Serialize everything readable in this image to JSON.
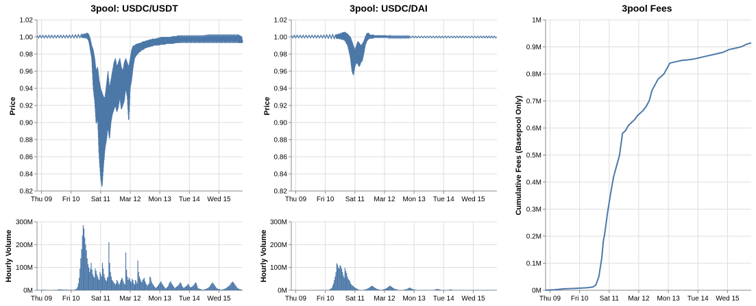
{
  "theme": {
    "series_color": "#4c78a8",
    "grid_color": "#dddddd",
    "axis_color": "#888888"
  },
  "chart_data": [
    {
      "id": "usdt_price",
      "type": "line",
      "title": "3pool: USDC/USDT",
      "xlabel": "",
      "ylabel": "Price",
      "x_ticks": [
        "Thu 09",
        "Fri 10",
        "Sat 11",
        "Mar 12",
        "Mon 13",
        "Tue 14",
        "Wed 15"
      ],
      "y_ticks": [
        "1.02",
        "1.00",
        "0.98",
        "0.96",
        "0.94",
        "0.92",
        "0.90",
        "0.88",
        "0.86",
        "0.84",
        "0.82"
      ],
      "ylim": [
        0.82,
        1.02
      ],
      "x_unit": "days since Thu 09 00:00",
      "xlim": [
        0,
        6.95
      ],
      "x": [
        0,
        0.5,
        1.0,
        1.5,
        1.7,
        1.75,
        1.8,
        1.85,
        1.9,
        1.95,
        2.0,
        2.05,
        2.1,
        2.15,
        2.2,
        2.25,
        2.3,
        2.35,
        2.4,
        2.45,
        2.5,
        2.55,
        2.6,
        2.65,
        2.7,
        2.75,
        2.8,
        2.85,
        2.9,
        2.95,
        3.0,
        3.05,
        3.1,
        3.15,
        3.2,
        3.25,
        3.3,
        3.35,
        3.4,
        3.45,
        3.5,
        3.55,
        3.6,
        3.65,
        3.7,
        3.75,
        3.8,
        3.85,
        3.9,
        3.95,
        4.0,
        4.1,
        4.2,
        4.3,
        4.4,
        4.5,
        4.6,
        4.7,
        4.8,
        5.0,
        5.2,
        5.4,
        5.6,
        5.8,
        6.0,
        6.2,
        6.4,
        6.6,
        6.8,
        6.95
      ],
      "high": [
        1.002,
        1.002,
        1.002,
        1.003,
        1.005,
        1.003,
        0.998,
        0.99,
        0.985,
        0.975,
        0.96,
        0.965,
        0.95,
        0.94,
        0.935,
        0.93,
        0.93,
        0.945,
        0.96,
        0.94,
        0.95,
        0.96,
        0.97,
        0.975,
        0.965,
        0.97,
        0.975,
        0.965,
        0.96,
        0.97,
        0.975,
        0.97,
        0.965,
        0.975,
        0.985,
        0.99,
        0.99,
        0.992,
        0.992,
        0.993,
        0.993,
        0.994,
        0.995,
        0.995,
        0.996,
        0.996,
        0.997,
        0.997,
        0.998,
        0.998,
        0.998,
        0.999,
        1.0,
        1.0,
        1.0,
        1.0,
        1.001,
        1.001,
        1.002,
        1.002,
        1.002,
        1.002,
        1.002,
        1.003,
        1.003,
        1.003,
        1.003,
        1.003,
        1.003,
        1.0
      ],
      "low": [
        0.999,
        0.999,
        0.999,
        0.999,
        0.998,
        0.995,
        0.985,
        0.975,
        0.94,
        0.925,
        0.898,
        0.905,
        0.86,
        0.835,
        0.824,
        0.85,
        0.87,
        0.88,
        0.895,
        0.88,
        0.9,
        0.91,
        0.915,
        0.92,
        0.912,
        0.918,
        0.93,
        0.915,
        0.92,
        0.925,
        0.94,
        0.93,
        0.9,
        0.94,
        0.95,
        0.965,
        0.975,
        0.978,
        0.98,
        0.982,
        0.983,
        0.985,
        0.985,
        0.987,
        0.987,
        0.988,
        0.988,
        0.989,
        0.989,
        0.99,
        0.99,
        0.99,
        0.991,
        0.991,
        0.992,
        0.992,
        0.992,
        0.993,
        0.993,
        0.993,
        0.993,
        0.993,
        0.993,
        0.993,
        0.993,
        0.993,
        0.993,
        0.993,
        0.993,
        0.993
      ]
    },
    {
      "id": "usdt_volume",
      "type": "bar",
      "title": "",
      "xlabel": "",
      "ylabel": "Hourly Volume",
      "x_ticks": [
        "Thu 09",
        "Fri 10",
        "Sat 11",
        "Mar 12",
        "Mon 13",
        "Tue 14",
        "Wed 15"
      ],
      "y_ticks": [
        "300M",
        "200M",
        "100M",
        "0M"
      ],
      "ylim": [
        0,
        300
      ],
      "x_unit": "hours since Thu 09 00:00",
      "values": [
        2,
        1,
        1,
        2,
        1,
        1,
        2,
        3,
        1,
        2,
        1,
        2,
        1,
        1,
        1,
        0,
        1,
        1,
        1,
        1,
        1,
        2,
        1,
        1,
        2,
        2,
        3,
        5,
        4,
        3,
        4,
        3,
        2,
        3,
        2,
        2,
        3,
        2,
        2,
        2,
        1,
        2,
        3,
        2,
        2,
        2,
        3,
        3,
        5,
        8,
        15,
        30,
        55,
        95,
        140,
        180,
        240,
        285,
        270,
        230,
        200,
        175,
        140,
        115,
        100,
        80,
        95,
        120,
        90,
        70,
        60,
        55,
        95,
        85,
        70,
        60,
        50,
        45,
        80,
        70,
        60,
        120,
        95,
        70,
        55,
        45,
        40,
        55,
        60,
        210,
        120,
        80,
        60,
        45,
        40,
        35,
        30,
        25,
        30,
        45,
        40,
        30,
        25,
        35,
        45,
        55,
        50,
        40,
        30,
        25,
        165,
        90,
        60,
        45,
        55,
        50,
        40,
        35,
        50,
        45,
        30,
        25,
        45,
        40,
        30,
        130,
        80,
        60,
        50,
        40,
        35,
        45,
        50,
        55,
        40,
        30,
        25,
        20,
        25,
        30,
        60,
        55,
        40,
        30,
        25,
        20,
        15,
        10,
        12,
        15,
        20,
        25,
        30,
        35,
        40,
        30,
        25,
        20,
        15,
        10,
        8,
        12,
        15,
        20,
        30,
        35,
        40,
        30,
        25,
        20,
        15,
        10,
        12,
        15,
        18,
        20,
        25,
        30,
        35,
        30,
        20,
        15,
        10,
        12,
        15,
        18,
        20,
        25,
        28,
        20,
        15,
        12,
        15,
        18,
        20,
        25,
        30,
        35,
        30,
        20,
        10,
        8,
        6,
        5,
        4,
        3,
        2,
        3,
        4,
        5,
        6,
        8,
        10,
        12,
        15,
        20,
        25,
        30,
        35,
        30,
        25,
        20,
        15,
        10,
        8,
        6,
        5,
        4,
        3,
        2,
        3,
        4,
        5,
        6,
        8,
        10,
        12,
        15,
        18,
        20,
        25,
        30,
        35,
        38,
        35,
        30,
        25,
        20,
        15,
        10,
        8,
        6,
        5,
        4,
        3,
        2
      ]
    },
    {
      "id": "dai_price",
      "type": "line",
      "title": "3pool: USDC/DAI",
      "xlabel": "",
      "ylabel": "Price",
      "x_ticks": [
        "Thu 09",
        "Fri 10",
        "Sat 11",
        "Mar 12",
        "Mon 13",
        "Tue 14",
        "Wed 15"
      ],
      "y_ticks": [
        "1.02",
        "1.00",
        "0.98",
        "0.96",
        "0.94",
        "0.92",
        "0.90",
        "0.88",
        "0.86",
        "0.84",
        "0.82"
      ],
      "ylim": [
        0.82,
        1.02
      ],
      "x_unit": "days since Thu 09 00:00",
      "xlim": [
        0,
        6.95
      ],
      "x": [
        0,
        0.5,
        1.0,
        1.5,
        1.7,
        1.8,
        1.9,
        2.0,
        2.05,
        2.1,
        2.15,
        2.2,
        2.25,
        2.3,
        2.35,
        2.4,
        2.45,
        2.5,
        2.55,
        2.6,
        2.65,
        2.7,
        2.75,
        2.8,
        2.85,
        2.9,
        3.0,
        3.2,
        3.4,
        3.6,
        3.8,
        4.0,
        4.5,
        5.0,
        5.5,
        6.0,
        6.5,
        6.95
      ],
      "high": [
        1.002,
        1.002,
        1.002,
        1.003,
        1.005,
        1.006,
        1.004,
        1.0,
        0.995,
        0.99,
        0.985,
        0.99,
        0.995,
        0.993,
        0.99,
        0.992,
        0.995,
        1.0,
        1.004,
        1.005,
        1.003,
        1.002,
        1.003,
        1.002,
        1.002,
        1.002,
        1.002,
        1.002,
        1.001,
        1.001,
        1.001,
        1.001,
        1.001,
        1.001,
        1.001,
        1.001,
        1.001,
        1.001
      ],
      "low": [
        0.999,
        0.999,
        0.999,
        0.998,
        0.997,
        0.996,
        0.99,
        0.975,
        0.96,
        0.955,
        0.965,
        0.97,
        0.968,
        0.965,
        0.97,
        0.972,
        0.98,
        0.99,
        0.995,
        0.997,
        0.998,
        0.998,
        0.998,
        0.999,
        0.999,
        0.999,
        0.999,
        0.999,
        0.999,
        0.999,
        0.999,
        0.999,
        0.999,
        0.999,
        0.999,
        0.999,
        0.999,
        0.999
      ]
    },
    {
      "id": "dai_volume",
      "type": "bar",
      "title": "",
      "xlabel": "",
      "ylabel": "Hourly Volume",
      "x_ticks": [
        "Thu 09",
        "Fri 10",
        "Sat 11",
        "Mar 12",
        "Mon 13",
        "Tue 14",
        "Wed 15"
      ],
      "y_ticks": [
        "300M",
        "200M",
        "100M",
        "0M"
      ],
      "ylim": [
        0,
        300
      ],
      "x_unit": "hours since Thu 09 00:00",
      "values": [
        0,
        0,
        0,
        0,
        0,
        0,
        0,
        0,
        0,
        0,
        0,
        0,
        0,
        0,
        0,
        0,
        0,
        0,
        0,
        0,
        0,
        0,
        0,
        0,
        0,
        0,
        1,
        1,
        1,
        1,
        1,
        1,
        1,
        1,
        1,
        1,
        1,
        1,
        1,
        1,
        1,
        1,
        1,
        1,
        1,
        2,
        3,
        5,
        8,
        10,
        20,
        30,
        45,
        60,
        80,
        118,
        112,
        100,
        95,
        110,
        105,
        95,
        80,
        65,
        55,
        98,
        85,
        75,
        60,
        50,
        45,
        40,
        30,
        25,
        20,
        20,
        15,
        12,
        10,
        8,
        6,
        4,
        2,
        1,
        1,
        1,
        1,
        1,
        2,
        3,
        4,
        5,
        6,
        8,
        10,
        12,
        15,
        18,
        20,
        18,
        15,
        12,
        10,
        8,
        6,
        5,
        4,
        3,
        2,
        1,
        2,
        3,
        4,
        5,
        6,
        8,
        10,
        12,
        15,
        18,
        20,
        18,
        15,
        12,
        10,
        8,
        6,
        5,
        4,
        3,
        2,
        1,
        1,
        1,
        1,
        1,
        1,
        2,
        3,
        4,
        5,
        6,
        8,
        10,
        12,
        10,
        8,
        6,
        5,
        4,
        3,
        2,
        1,
        1,
        1,
        1,
        1,
        1,
        1,
        1,
        1,
        1,
        1,
        1,
        1,
        1,
        1,
        1,
        1,
        1,
        1,
        1,
        1,
        1,
        2,
        3,
        4,
        5,
        6,
        5,
        4,
        3,
        2,
        1,
        1,
        1,
        1,
        1,
        1,
        1,
        1,
        1,
        2,
        3,
        4,
        3,
        2,
        1,
        1,
        1,
        1,
        1,
        1,
        1,
        1,
        1,
        1,
        1,
        1,
        1,
        1,
        1,
        1,
        1,
        1,
        1,
        1,
        1,
        1,
        1,
        1,
        1,
        1,
        1,
        1,
        1,
        1,
        1,
        1,
        1,
        1,
        1,
        1,
        1,
        1,
        1,
        1,
        1,
        1,
        1,
        1,
        1,
        1,
        1,
        1,
        1,
        1,
        1,
        1,
        1,
        1
      ]
    },
    {
      "id": "fees",
      "type": "line",
      "title": "3pool Fees",
      "xlabel": "",
      "ylabel": "Cumulative Fees (Basepool Only)",
      "x_ticks": [
        "Thu 09",
        "Fri 10",
        "Sat 11",
        "Mar 12",
        "Mon 13",
        "Tue 14",
        "Wed 15"
      ],
      "y_ticks": [
        "1M",
        "0.9M",
        "0.8M",
        "0.7M",
        "0.6M",
        "0.5M",
        "0.4M",
        "0.3M",
        "0.2M",
        "0.1M",
        "0M"
      ],
      "ylim": [
        0,
        1.0
      ],
      "x_unit": "days since Thu 09 00:00",
      "xlim": [
        0,
        6.95
      ],
      "x": [
        0,
        0.3,
        0.6,
        1.0,
        1.4,
        1.6,
        1.7,
        1.8,
        1.9,
        1.95,
        2.0,
        2.1,
        2.2,
        2.3,
        2.4,
        2.5,
        2.6,
        2.7,
        2.8,
        2.9,
        3.0,
        3.1,
        3.2,
        3.3,
        3.4,
        3.5,
        3.6,
        3.7,
        3.8,
        3.9,
        4.0,
        4.2,
        4.4,
        4.6,
        4.8,
        5.0,
        5.2,
        5.4,
        5.6,
        5.8,
        6.0,
        6.2,
        6.4,
        6.6,
        6.8,
        6.95
      ],
      "y": [
        0.0,
        0.002,
        0.005,
        0.007,
        0.009,
        0.012,
        0.02,
        0.05,
        0.12,
        0.18,
        0.21,
        0.29,
        0.36,
        0.42,
        0.46,
        0.5,
        0.58,
        0.59,
        0.61,
        0.62,
        0.63,
        0.645,
        0.655,
        0.665,
        0.68,
        0.7,
        0.74,
        0.76,
        0.78,
        0.79,
        0.8,
        0.84,
        0.845,
        0.85,
        0.852,
        0.855,
        0.86,
        0.865,
        0.87,
        0.875,
        0.88,
        0.89,
        0.895,
        0.9,
        0.91,
        0.915
      ]
    }
  ]
}
